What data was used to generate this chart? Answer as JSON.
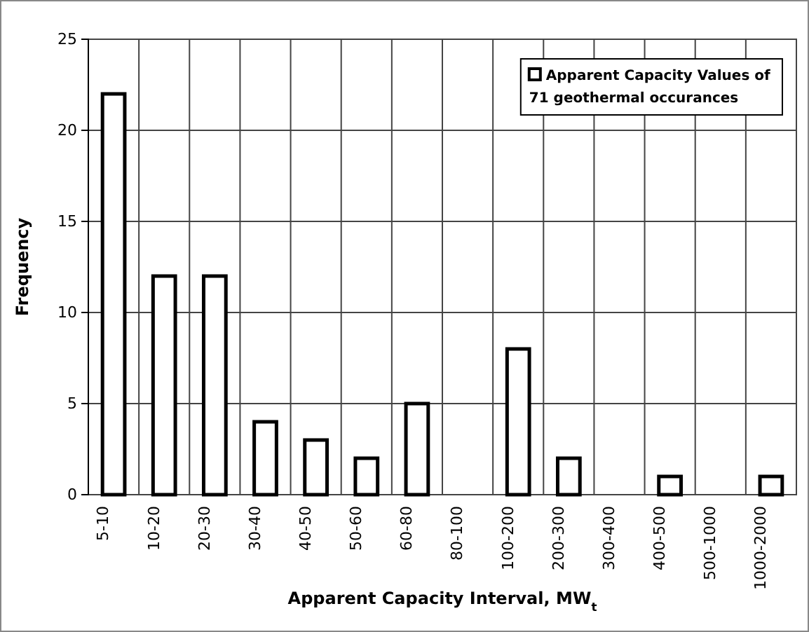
{
  "chart_data": {
    "type": "bar",
    "xlabel": "Apparent Capacity Interval, MW$_{t}$",
    "ylabel": "Frequency",
    "categories": [
      "5-10",
      "10-20",
      "20-30",
      "30-40",
      "40-50",
      "50-60",
      "60-80",
      "80-100",
      "100-200",
      "200-300",
      "300-400",
      "400-500",
      "500-1000",
      "1000-2000"
    ],
    "series": [
      {
        "name": "Apparent Capacity Values of 71 geothermal occurances",
        "color": "#ffffff",
        "values": [
          22,
          12,
          12,
          4,
          3,
          2,
          5,
          0,
          8,
          2,
          0,
          1,
          0,
          1
        ]
      }
    ],
    "ylim": [
      0,
      25
    ],
    "yticks": [
      0,
      5,
      10,
      15,
      20,
      25
    ],
    "grid": true,
    "legend": "top right"
  }
}
